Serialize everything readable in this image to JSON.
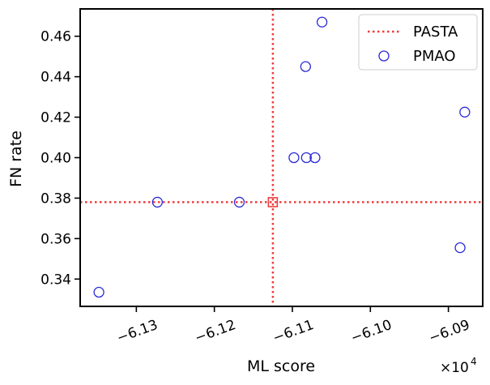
{
  "chart_data": {
    "type": "scatter",
    "xlabel": "ML score",
    "ylabel": "FN rate",
    "x_offset_label": "×10",
    "x_offset_exponent": "4",
    "xlim": [
      -6.1372,
      -6.0856
    ],
    "ylim": [
      0.3265,
      0.4735
    ],
    "x_ticks": [
      {
        "value": -6.13,
        "label": "−6.13"
      },
      {
        "value": -6.12,
        "label": "−6.12"
      },
      {
        "value": -6.11,
        "label": "−6.11"
      },
      {
        "value": -6.1,
        "label": "−6.10"
      },
      {
        "value": -6.09,
        "label": "−6.09"
      }
    ],
    "y_ticks": [
      {
        "value": 0.34,
        "label": "0.34"
      },
      {
        "value": 0.36,
        "label": "0.36"
      },
      {
        "value": 0.38,
        "label": "0.38"
      },
      {
        "value": 0.4,
        "label": "0.40"
      },
      {
        "value": 0.42,
        "label": "0.42"
      },
      {
        "value": 0.44,
        "label": "0.44"
      },
      {
        "value": 0.46,
        "label": "0.46"
      }
    ],
    "grid": false,
    "legend_position": "top-right",
    "series": [
      {
        "name": "PASTA",
        "kind": "reference-lines",
        "style": "dotted",
        "color": "#f03c3c",
        "x": -6.1125,
        "y": 0.378
      },
      {
        "name": "PMAO",
        "kind": "scatter",
        "marker": "circle-open",
        "color": "#2a2ad8",
        "points": [
          {
            "x": -6.1348,
            "y": 0.3335
          },
          {
            "x": -6.1273,
            "y": 0.378
          },
          {
            "x": -6.1168,
            "y": 0.378
          },
          {
            "x": -6.1098,
            "y": 0.4
          },
          {
            "x": -6.1082,
            "y": 0.4
          },
          {
            "x": -6.1071,
            "y": 0.4
          },
          {
            "x": -6.1083,
            "y": 0.445
          },
          {
            "x": -6.1062,
            "y": 0.467
          },
          {
            "x": -6.0885,
            "y": 0.3555
          },
          {
            "x": -6.0879,
            "y": 0.4225
          }
        ]
      }
    ],
    "highlight": {
      "marker": "square-open",
      "color": "#f03c3c",
      "x": -6.1125,
      "y": 0.378
    }
  }
}
